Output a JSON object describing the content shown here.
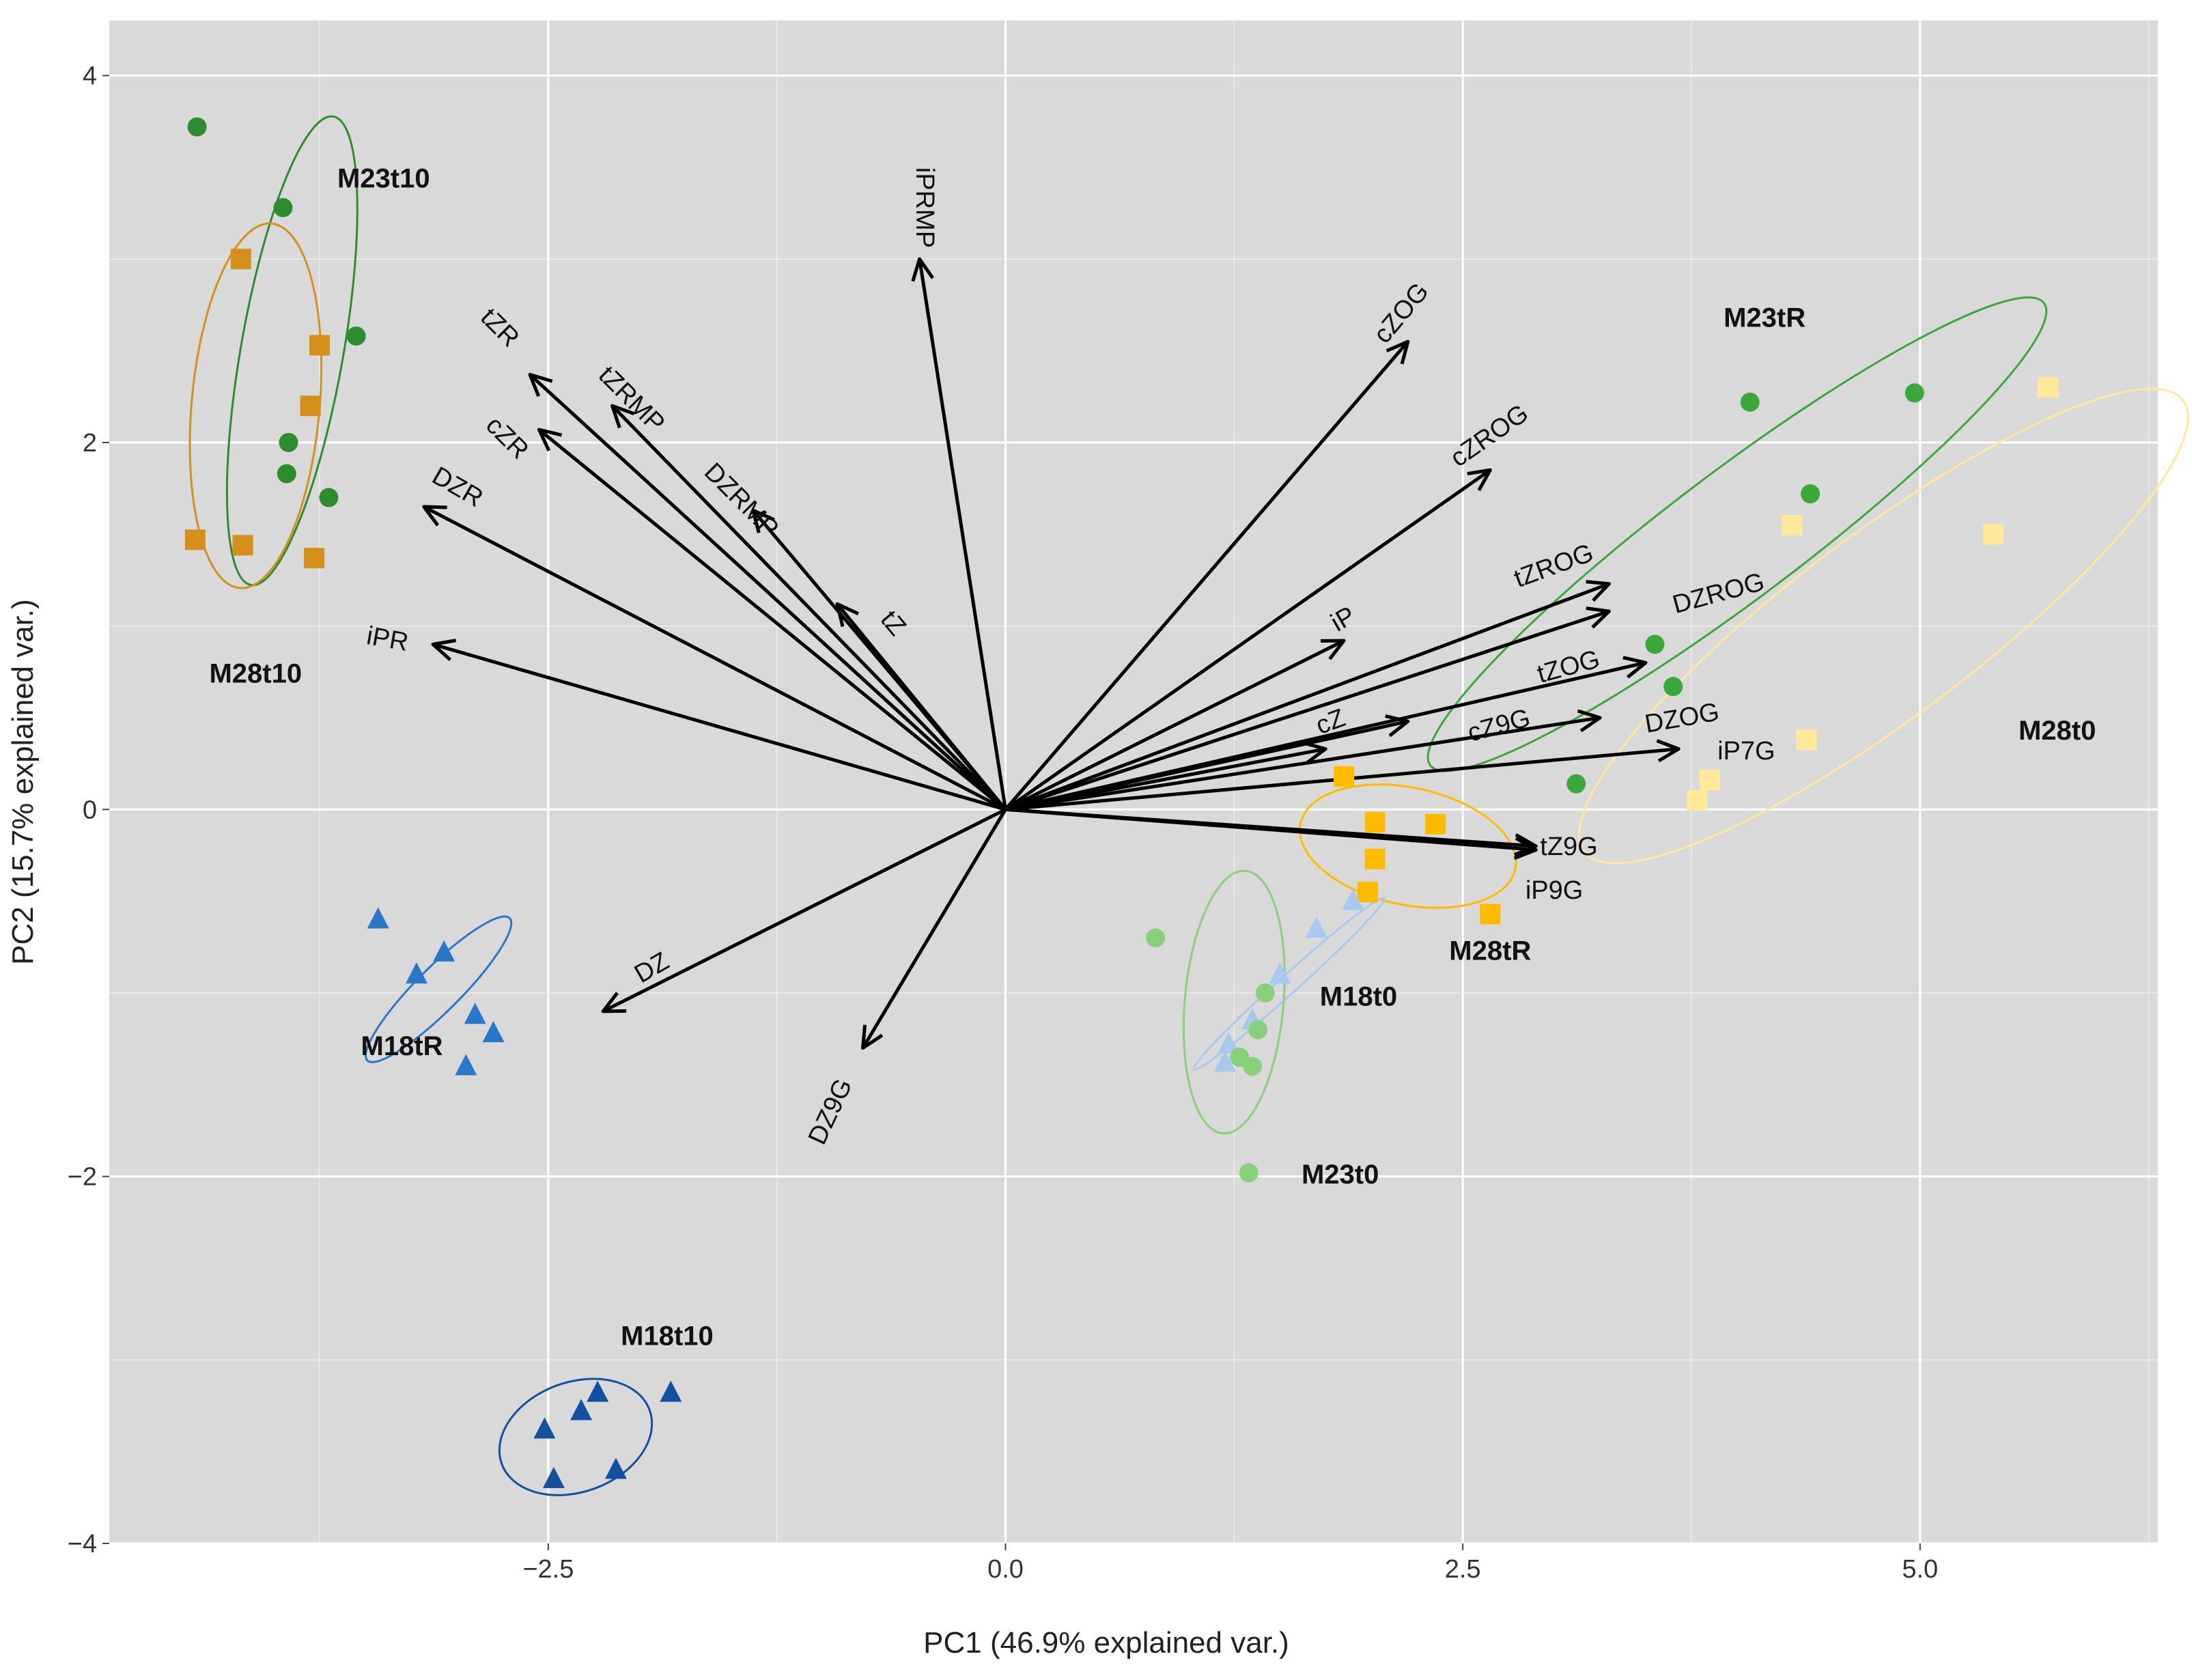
{
  "chart_data": {
    "type": "scatter",
    "title": "",
    "xlabel": "PC1 (46.9% explained var.)",
    "ylabel": "PC2 (15.7% explained var.)",
    "xlim": [
      -4.9,
      6.3
    ],
    "ylim": [
      -4.0,
      4.3
    ],
    "xticks": [
      -2.5,
      0.0,
      2.5,
      5.0
    ],
    "xtick_labels": [
      "−2.5",
      "0.0",
      "2.5",
      "5.0"
    ],
    "yticks": [
      -4,
      -2,
      0,
      2,
      4
    ],
    "ytick_labels": [
      "−4",
      "−2",
      "0",
      "2",
      "4"
    ],
    "grid": true,
    "background": "#d9d9d9",
    "loadings": [
      {
        "name": "iPRMP",
        "x": -0.47,
        "y": 3.0
      },
      {
        "name": "tZR",
        "x": -2.6,
        "y": 2.37
      },
      {
        "name": "tZRMP",
        "x": -2.15,
        "y": 2.2
      },
      {
        "name": "cZR",
        "x": -2.55,
        "y": 2.07
      },
      {
        "name": "DZR",
        "x": -3.18,
        "y": 1.65
      },
      {
        "name": "DZRMP",
        "x": -1.38,
        "y": 1.63
      },
      {
        "name": "tZ",
        "x": -0.92,
        "y": 1.12
      },
      {
        "name": "iPR",
        "x": -3.13,
        "y": 0.9
      },
      {
        "name": "DZ",
        "x": -2.2,
        "y": -1.1
      },
      {
        "name": "DZ9G",
        "x": -0.78,
        "y": -1.3
      },
      {
        "name": "cZOG",
        "x": 2.2,
        "y": 2.55
      },
      {
        "name": "cZROG",
        "x": 2.65,
        "y": 1.85
      },
      {
        "name": "tZROG",
        "x": 3.3,
        "y": 1.23
      },
      {
        "name": "DZROG",
        "x": 3.3,
        "y": 1.08
      },
      {
        "name": "iP",
        "x": 1.85,
        "y": 0.92
      },
      {
        "name": "tZOG",
        "x": 3.5,
        "y": 0.8
      },
      {
        "name": "cZ",
        "x": 1.75,
        "y": 0.33
      },
      {
        "name": "cZ9G",
        "x": 2.2,
        "y": 0.48
      },
      {
        "name": "DZOG",
        "x": 3.25,
        "y": 0.5
      },
      {
        "name": "iP7G",
        "x": 3.68,
        "y": 0.33
      },
      {
        "name": "tZ9G",
        "x": 2.9,
        "y": -0.2
      },
      {
        "name": "iP9G",
        "x": 2.9,
        "y": -0.22
      }
    ],
    "loading_labels": [
      {
        "name": "iPRMP",
        "x": -0.45,
        "y": 3.28,
        "rotate": 90
      },
      {
        "name": "tZR",
        "x": -2.77,
        "y": 2.62,
        "rotate": 45
      },
      {
        "name": "tZRMP",
        "x": -2.05,
        "y": 2.23,
        "rotate": 45
      },
      {
        "name": "cZR",
        "x": -2.73,
        "y": 2.02,
        "rotate": 45
      },
      {
        "name": "DZR",
        "x": -3.0,
        "y": 1.75,
        "rotate": 30
      },
      {
        "name": "DZRMP",
        "x": -1.45,
        "y": 1.68,
        "rotate": 45
      },
      {
        "name": "tZ",
        "x": -0.62,
        "y": 1.01,
        "rotate": 50
      },
      {
        "name": "iPR",
        "x": -3.38,
        "y": 0.92,
        "rotate": 10
      },
      {
        "name": "DZ",
        "x": -1.93,
        "y": -0.87,
        "rotate": -30
      },
      {
        "name": "DZ9G",
        "x": -0.95,
        "y": -1.65,
        "rotate": -65
      },
      {
        "name": "cZOG",
        "x": 2.17,
        "y": 2.7,
        "rotate": -50
      },
      {
        "name": "cZROG",
        "x": 2.65,
        "y": 2.03,
        "rotate": -35
      },
      {
        "name": "tZROG",
        "x": 3.0,
        "y": 1.32,
        "rotate": -20
      },
      {
        "name": "DZROG",
        "x": 3.9,
        "y": 1.17,
        "rotate": -15
      },
      {
        "name": "iP",
        "x": 1.85,
        "y": 1.03,
        "rotate": -30
      },
      {
        "name": "tZOG",
        "x": 3.08,
        "y": 0.77,
        "rotate": -15
      },
      {
        "name": "cZ",
        "x": 1.78,
        "y": 0.47,
        "rotate": -20
      },
      {
        "name": "cZ9G",
        "x": 2.7,
        "y": 0.45,
        "rotate": -15
      },
      {
        "name": "DZOG",
        "x": 3.7,
        "y": 0.49,
        "rotate": -10
      },
      {
        "name": "iP7G",
        "x": 4.05,
        "y": 0.31,
        "rotate": 0
      },
      {
        "name": "tZ9G",
        "x": 3.08,
        "y": -0.21,
        "rotate": 0
      },
      {
        "name": "iP9G",
        "x": 3.0,
        "y": -0.45,
        "rotate": 0
      }
    ],
    "series": [
      {
        "name": "M23t10",
        "shape": "circle",
        "color": "#2e8b2e",
        "x": [
          -4.42,
          -3.95,
          -3.92,
          -3.93,
          -3.55,
          -3.7
        ],
        "y": [
          3.72,
          3.28,
          2.0,
          1.83,
          2.58,
          1.7
        ],
        "ellipse": {
          "cx": -3.9,
          "cy": 2.5,
          "rx": 1.3,
          "ry": 0.28,
          "angle": 80
        }
      },
      {
        "name": "M28t10",
        "shape": "square",
        "color": "#d4901a",
        "x": [
          -4.18,
          -3.75,
          -3.8,
          -4.43,
          -4.17,
          -3.78
        ],
        "y": [
          3.0,
          2.53,
          2.2,
          1.47,
          1.44,
          1.37
        ],
        "ellipse": {
          "cx": -4.1,
          "cy": 2.2,
          "rx": 1.0,
          "ry": 0.35,
          "angle": 85
        }
      },
      {
        "name": "M23tR",
        "shape": "circle",
        "color": "#3aa83a",
        "x": [
          4.07,
          4.97,
          4.4,
          3.55,
          3.65,
          3.12
        ],
        "y": [
          2.22,
          2.27,
          1.72,
          0.9,
          0.67,
          0.14
        ],
        "ellipse": {
          "cx": 4.0,
          "cy": 1.5,
          "rx": 2.1,
          "ry": 0.35,
          "angle": 37
        }
      },
      {
        "name": "M28t0",
        "shape": "square",
        "color": "#ffe89a",
        "x": [
          5.7,
          4.3,
          5.4,
          4.38,
          3.85,
          3.78
        ],
        "y": [
          2.3,
          1.55,
          1.5,
          0.38,
          0.16,
          0.05
        ],
        "ellipse": {
          "cx": 4.8,
          "cy": 1.0,
          "rx": 2.05,
          "ry": 0.5,
          "angle": 37
        }
      },
      {
        "name": "M28tR",
        "shape": "square",
        "color": "#ffbb00",
        "x": [
          1.85,
          2.02,
          2.35,
          2.02,
          1.98,
          2.65
        ],
        "y": [
          0.18,
          -0.07,
          -0.08,
          -0.27,
          -0.45,
          -0.57
        ],
        "ellipse": {
          "cx": 2.2,
          "cy": -0.2,
          "rx": 0.6,
          "ry": 0.32,
          "angle": -12
        }
      },
      {
        "name": "M18t0",
        "shape": "triangle",
        "color": "#a8c8f0",
        "x": [
          1.9,
          1.7,
          1.5,
          1.35,
          1.22,
          1.2
        ],
        "y": [
          -0.5,
          -0.65,
          -0.9,
          -1.15,
          -1.28,
          -1.38
        ],
        "ellipse": {
          "cx": 1.55,
          "cy": -0.95,
          "rx": 0.7,
          "ry": 0.05,
          "angle": 42
        }
      },
      {
        "name": "M23t0",
        "shape": "circle",
        "color": "#88d07a",
        "x": [
          0.82,
          1.42,
          1.38,
          1.28,
          1.35,
          1.33
        ],
        "y": [
          -0.7,
          -1.0,
          -1.2,
          -1.35,
          -1.4,
          -1.98
        ],
        "ellipse": {
          "cx": 1.25,
          "cy": -1.05,
          "rx": 0.72,
          "ry": 0.27,
          "angle": 85
        }
      },
      {
        "name": "M18tR",
        "shape": "triangle",
        "color": "#2a76c8",
        "x": [
          -3.43,
          -3.07,
          -3.22,
          -2.9,
          -2.8,
          -2.95
        ],
        "y": [
          -0.6,
          -0.78,
          -0.9,
          -1.12,
          -1.22,
          -1.4
        ],
        "ellipse": {
          "cx": -3.1,
          "cy": -0.98,
          "rx": 0.55,
          "ry": 0.12,
          "angle": 45
        }
      },
      {
        "name": "M18t10",
        "shape": "triangle",
        "color": "#1450a0",
        "x": [
          -2.23,
          -2.32,
          -1.83,
          -2.52,
          -2.47,
          -2.13
        ],
        "y": [
          -3.18,
          -3.28,
          -3.18,
          -3.38,
          -3.65,
          -3.6
        ],
        "ellipse": {
          "cx": -2.35,
          "cy": -3.42,
          "rx": 0.43,
          "ry": 0.3,
          "angle": 20
        }
      }
    ],
    "group_labels": [
      {
        "name": "M23t10",
        "x": -3.4,
        "y": 3.43
      },
      {
        "name": "M28t10",
        "x": -4.1,
        "y": 0.73
      },
      {
        "name": "M23tR",
        "x": 4.15,
        "y": 2.67
      },
      {
        "name": "M28t0",
        "x": 5.75,
        "y": 0.42
      },
      {
        "name": "M28tR",
        "x": 2.65,
        "y": -0.78
      },
      {
        "name": "M18t0",
        "x": 1.93,
        "y": -1.03
      },
      {
        "name": "M23t0",
        "x": 1.83,
        "y": -2.0
      },
      {
        "name": "M18tR",
        "x": -3.3,
        "y": -1.3
      },
      {
        "name": "M18t10",
        "x": -1.85,
        "y": -2.88
      }
    ]
  }
}
